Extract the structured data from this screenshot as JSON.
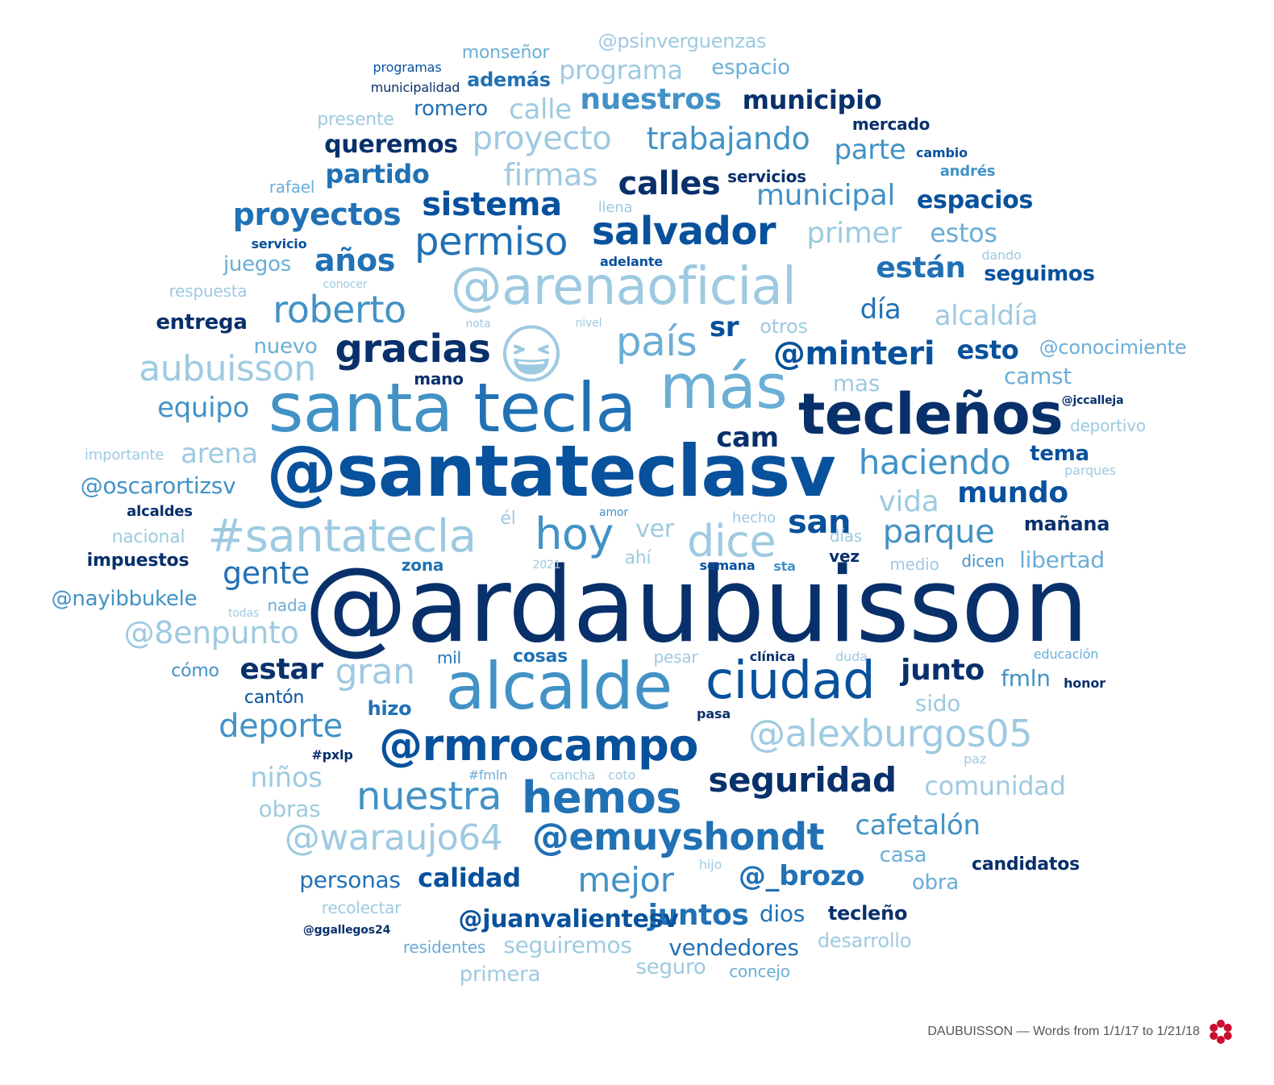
{
  "colors": {
    "c1": "#08306b",
    "c2": "#08519c",
    "c3": "#2171b5",
    "c4": "#4292c6",
    "c5": "#6baed6",
    "c6": "#9ecae1"
  },
  "emoji": {
    "icon": "grinning-squinting-face-icon",
    "color": "#9ecae1"
  },
  "words": [
    {
      "text": "@ardaubuisson",
      "size": 128,
      "color": "c1"
    },
    {
      "text": "@santateclasv",
      "size": 88,
      "color": "c2"
    },
    {
      "text": "santa",
      "size": 84,
      "color": "c4"
    },
    {
      "text": "tecla",
      "size": 84,
      "color": "c3"
    },
    {
      "text": "alcalde",
      "size": 80,
      "color": "c4"
    },
    {
      "text": "más",
      "size": 76,
      "color": "c5"
    },
    {
      "text": "tecleños",
      "size": 70,
      "color": "c1"
    },
    {
      "text": "@arenaoficial",
      "size": 64,
      "color": "c6"
    },
    {
      "text": "ciudad",
      "size": 64,
      "color": "c2"
    },
    {
      "text": "#santatecla",
      "size": 56,
      "color": "c6"
    },
    {
      "text": "@rmrocampo",
      "size": 54,
      "color": "c2"
    },
    {
      "text": "hemos",
      "size": 54,
      "color": "c3"
    },
    {
      "text": "hoy",
      "size": 54,
      "color": "c4"
    },
    {
      "text": "dice",
      "size": 54,
      "color": "c6"
    },
    {
      "text": "nuestra",
      "size": 48,
      "color": "c4"
    },
    {
      "text": "permiso",
      "size": 48,
      "color": "c3"
    },
    {
      "text": "salvador",
      "size": 48,
      "color": "c2"
    },
    {
      "text": "país",
      "size": 50,
      "color": "c5"
    },
    {
      "text": "gracias",
      "size": 48,
      "color": "c1"
    },
    {
      "text": "roberto",
      "size": 46,
      "color": "c4"
    },
    {
      "text": "@alexburgos05",
      "size": 46,
      "color": "c6"
    },
    {
      "text": "@emuyshondt",
      "size": 46,
      "color": "c3"
    },
    {
      "text": "@waraujo64",
      "size": 44,
      "color": "c6"
    },
    {
      "text": "aubuisson",
      "size": 44,
      "color": "c6"
    },
    {
      "text": "gran",
      "size": 44,
      "color": "c6"
    },
    {
      "text": "mejor",
      "size": 42,
      "color": "c4"
    },
    {
      "text": "haciendo",
      "size": 42,
      "color": "c4"
    },
    {
      "text": "seguridad",
      "size": 42,
      "color": "c1"
    },
    {
      "text": "@minteri",
      "size": 40,
      "color": "c2"
    },
    {
      "text": "proyecto",
      "size": 40,
      "color": "c6"
    },
    {
      "text": "sistema",
      "size": 40,
      "color": "c2"
    },
    {
      "text": "calles",
      "size": 40,
      "color": "c1"
    },
    {
      "text": "parque",
      "size": 40,
      "color": "c4"
    },
    {
      "text": "deporte",
      "size": 40,
      "color": "c4"
    },
    {
      "text": "san",
      "size": 40,
      "color": "c2"
    },
    {
      "text": "trabajando",
      "size": 38,
      "color": "c4"
    },
    {
      "text": "proyectos",
      "size": 38,
      "color": "c3"
    },
    {
      "text": "firmas",
      "size": 38,
      "color": "c6"
    },
    {
      "text": "gente",
      "size": 38,
      "color": "c3"
    },
    {
      "text": "@8enpunto",
      "size": 38,
      "color": "c6"
    },
    {
      "text": "años",
      "size": 38,
      "color": "c3"
    },
    {
      "text": "juntos",
      "size": 36,
      "color": "c3"
    },
    {
      "text": "municipal",
      "size": 36,
      "color": "c4"
    },
    {
      "text": "primer",
      "size": 36,
      "color": "c6"
    },
    {
      "text": "vida",
      "size": 36,
      "color": "c6"
    },
    {
      "text": "mundo",
      "size": 36,
      "color": "c2"
    },
    {
      "text": "junto",
      "size": 36,
      "color": "c1"
    },
    {
      "text": "estar",
      "size": 36,
      "color": "c1"
    },
    {
      "text": "nuestros",
      "size": 36,
      "color": "c4"
    },
    {
      "text": "están",
      "size": 36,
      "color": "c3"
    },
    {
      "text": "equipo",
      "size": 34,
      "color": "c4"
    },
    {
      "text": "arena",
      "size": 34,
      "color": "c6"
    },
    {
      "text": "día",
      "size": 34,
      "color": "c3"
    },
    {
      "text": "cafetalón",
      "size": 34,
      "color": "c4"
    },
    {
      "text": "comunidad",
      "size": 32,
      "color": "c6"
    },
    {
      "text": "@_brozo",
      "size": 34,
      "color": "c3"
    },
    {
      "text": "alcaldía",
      "size": 34,
      "color": "c6"
    },
    {
      "text": "calle",
      "size": 34,
      "color": "c6"
    },
    {
      "text": "niños",
      "size": 34,
      "color": "c6"
    },
    {
      "text": "cam",
      "size": 34,
      "color": "c1"
    },
    {
      "text": "parte",
      "size": 34,
      "color": "c4"
    },
    {
      "text": "esto",
      "size": 32,
      "color": "c2"
    },
    {
      "text": "sr",
      "size": 34,
      "color": "c2"
    },
    {
      "text": "ver",
      "size": 30,
      "color": "c6"
    },
    {
      "text": "municipio",
      "size": 32,
      "color": "c1"
    },
    {
      "text": "programa",
      "size": 32,
      "color": "c6"
    },
    {
      "text": "partido",
      "size": 32,
      "color": "c3"
    },
    {
      "text": "calidad",
      "size": 32,
      "color": "c2"
    },
    {
      "text": "espacios",
      "size": 30,
      "color": "c2"
    },
    {
      "text": "estos",
      "size": 32,
      "color": "c5"
    },
    {
      "text": "@juanvalientesv",
      "size": 30,
      "color": "c2"
    },
    {
      "text": "queremos",
      "size": 30,
      "color": "c1"
    },
    {
      "text": "@oscarortizsv",
      "size": 28,
      "color": "c4"
    },
    {
      "text": "@nayibbukele",
      "size": 26,
      "color": "c4"
    },
    {
      "text": "camst",
      "size": 28,
      "color": "c5"
    },
    {
      "text": "libertad",
      "size": 28,
      "color": "c5"
    },
    {
      "text": "fmln",
      "size": 28,
      "color": "c4"
    },
    {
      "text": "sido",
      "size": 28,
      "color": "c6"
    },
    {
      "text": "obras",
      "size": 28,
      "color": "c6"
    },
    {
      "text": "personas",
      "size": 28,
      "color": "c3"
    },
    {
      "text": "seguiremos",
      "size": 28,
      "color": "c6"
    },
    {
      "text": "vendedores",
      "size": 28,
      "color": "c3"
    },
    {
      "text": "dios",
      "size": 28,
      "color": "c3"
    },
    {
      "text": "mas",
      "size": 28,
      "color": "c6"
    },
    {
      "text": "romero",
      "size": 26,
      "color": "c3"
    },
    {
      "text": "nuevo",
      "size": 26,
      "color": "c5"
    },
    {
      "text": "seguimos",
      "size": 26,
      "color": "c2"
    },
    {
      "text": "entrega",
      "size": 26,
      "color": "c1"
    },
    {
      "text": "espacio",
      "size": 26,
      "color": "c5"
    },
    {
      "text": "@conocimiente",
      "size": 24,
      "color": "c5"
    },
    {
      "text": "primera",
      "size": 26,
      "color": "c6"
    },
    {
      "text": "seguro",
      "size": 26,
      "color": "c6"
    },
    {
      "text": "desarrollo",
      "size": 24,
      "color": "c6"
    },
    {
      "text": "obra",
      "size": 26,
      "color": "c5"
    },
    {
      "text": "casa",
      "size": 26,
      "color": "c5"
    },
    {
      "text": "tecleño",
      "size": 24,
      "color": "c1"
    },
    {
      "text": "tema",
      "size": 26,
      "color": "c2"
    },
    {
      "text": "juegos",
      "size": 26,
      "color": "c5"
    },
    {
      "text": "además",
      "size": 24,
      "color": "c3"
    },
    {
      "text": "otros",
      "size": 24,
      "color": "c6"
    },
    {
      "text": "hizo",
      "size": 24,
      "color": "c3"
    },
    {
      "text": "cosas",
      "size": 22,
      "color": "c3"
    },
    {
      "text": "@psinverguenzas",
      "size": 24,
      "color": "c6"
    },
    {
      "text": "mañana",
      "size": 24,
      "color": "c1"
    },
    {
      "text": "presente",
      "size": 22,
      "color": "c6"
    },
    {
      "text": "cantón",
      "size": 22,
      "color": "c2"
    },
    {
      "text": "cómo",
      "size": 22,
      "color": "c4"
    },
    {
      "text": "impuestos",
      "size": 22,
      "color": "c1"
    },
    {
      "text": "nacional",
      "size": 22,
      "color": "c6"
    },
    {
      "text": "monseñor",
      "size": 22,
      "color": "c5"
    },
    {
      "text": "él",
      "size": 22,
      "color": "c6"
    },
    {
      "text": "ahí",
      "size": 22,
      "color": "c6"
    },
    {
      "text": "deportivo",
      "size": 20,
      "color": "c6"
    },
    {
      "text": "nada",
      "size": 20,
      "color": "c5"
    },
    {
      "text": "candidatos",
      "size": 22,
      "color": "c1"
    },
    {
      "text": "recolectar",
      "size": 20,
      "color": "c6"
    },
    {
      "text": "concejo",
      "size": 20,
      "color": "c5"
    },
    {
      "text": "residentes",
      "size": 20,
      "color": "c5"
    },
    {
      "text": "servicios",
      "size": 20,
      "color": "c1"
    },
    {
      "text": "medio",
      "size": 20,
      "color": "c6"
    },
    {
      "text": "vez",
      "size": 20,
      "color": "c1"
    },
    {
      "text": "zona",
      "size": 20,
      "color": "c3"
    },
    {
      "text": "mil",
      "size": 20,
      "color": "c3"
    },
    {
      "text": "pesar",
      "size": 20,
      "color": "c6"
    },
    {
      "text": "dicen",
      "size": 20,
      "color": "c4"
    },
    {
      "text": "mercado",
      "size": 20,
      "color": "c1"
    },
    {
      "text": "mano",
      "size": 20,
      "color": "c1"
    },
    {
      "text": "respuesta",
      "size": 20,
      "color": "c6"
    },
    {
      "text": "rafael",
      "size": 20,
      "color": "c5"
    },
    {
      "text": "días",
      "size": 20,
      "color": "c6"
    },
    {
      "text": "importante",
      "size": 18,
      "color": "c6"
    },
    {
      "text": "alcaldes",
      "size": 18,
      "color": "c1"
    },
    {
      "text": "llena",
      "size": 18,
      "color": "c6"
    },
    {
      "text": "hecho",
      "size": 18,
      "color": "c6"
    },
    {
      "text": "semana",
      "size": 16,
      "color": "c2"
    },
    {
      "text": "sta",
      "size": 16,
      "color": "c4"
    },
    {
      "text": "#fmln",
      "size": 16,
      "color": "c5"
    },
    {
      "text": "cancha",
      "size": 16,
      "color": "c6"
    },
    {
      "text": "coto",
      "size": 16,
      "color": "c6"
    },
    {
      "text": "#pxlp",
      "size": 16,
      "color": "c1"
    },
    {
      "text": "paz",
      "size": 16,
      "color": "c6"
    },
    {
      "text": "honor",
      "size": 16,
      "color": "c1"
    },
    {
      "text": "educación",
      "size": 16,
      "color": "c5"
    },
    {
      "text": "duda",
      "size": 16,
      "color": "c6"
    },
    {
      "text": "clínica",
      "size": 16,
      "color": "c1"
    },
    {
      "text": "pasa",
      "size": 16,
      "color": "c1"
    },
    {
      "text": "hijo",
      "size": 16,
      "color": "c6"
    },
    {
      "text": "andrés",
      "size": 18,
      "color": "c4"
    },
    {
      "text": "cambio",
      "size": 16,
      "color": "c2"
    },
    {
      "text": "servicio",
      "size": 16,
      "color": "c2"
    },
    {
      "text": "adelante",
      "size": 16,
      "color": "c2"
    },
    {
      "text": "conocer",
      "size": 14,
      "color": "c6"
    },
    {
      "text": "nota",
      "size": 14,
      "color": "c6"
    },
    {
      "text": "nivel",
      "size": 14,
      "color": "c6"
    },
    {
      "text": "dando",
      "size": 16,
      "color": "c6"
    },
    {
      "text": "parques",
      "size": 16,
      "color": "c6"
    },
    {
      "text": "amor",
      "size": 14,
      "color": "c4"
    },
    {
      "text": "2021",
      "size": 14,
      "color": "c6"
    },
    {
      "text": "todas",
      "size": 14,
      "color": "c6"
    },
    {
      "text": "@jccalleja",
      "size": 14,
      "color": "c1"
    },
    {
      "text": "@ggallegos24",
      "size": 14,
      "color": "c1"
    },
    {
      "text": "programas",
      "size": 16,
      "color": "c2"
    },
    {
      "text": "municipalidad",
      "size": 16,
      "color": "c1"
    }
  ],
  "footer": {
    "text": "DAUBUISSON — Words from 1/1/17 to 1/21/18",
    "logo": "flower-logo-icon",
    "logo_color": "#c8102e"
  }
}
